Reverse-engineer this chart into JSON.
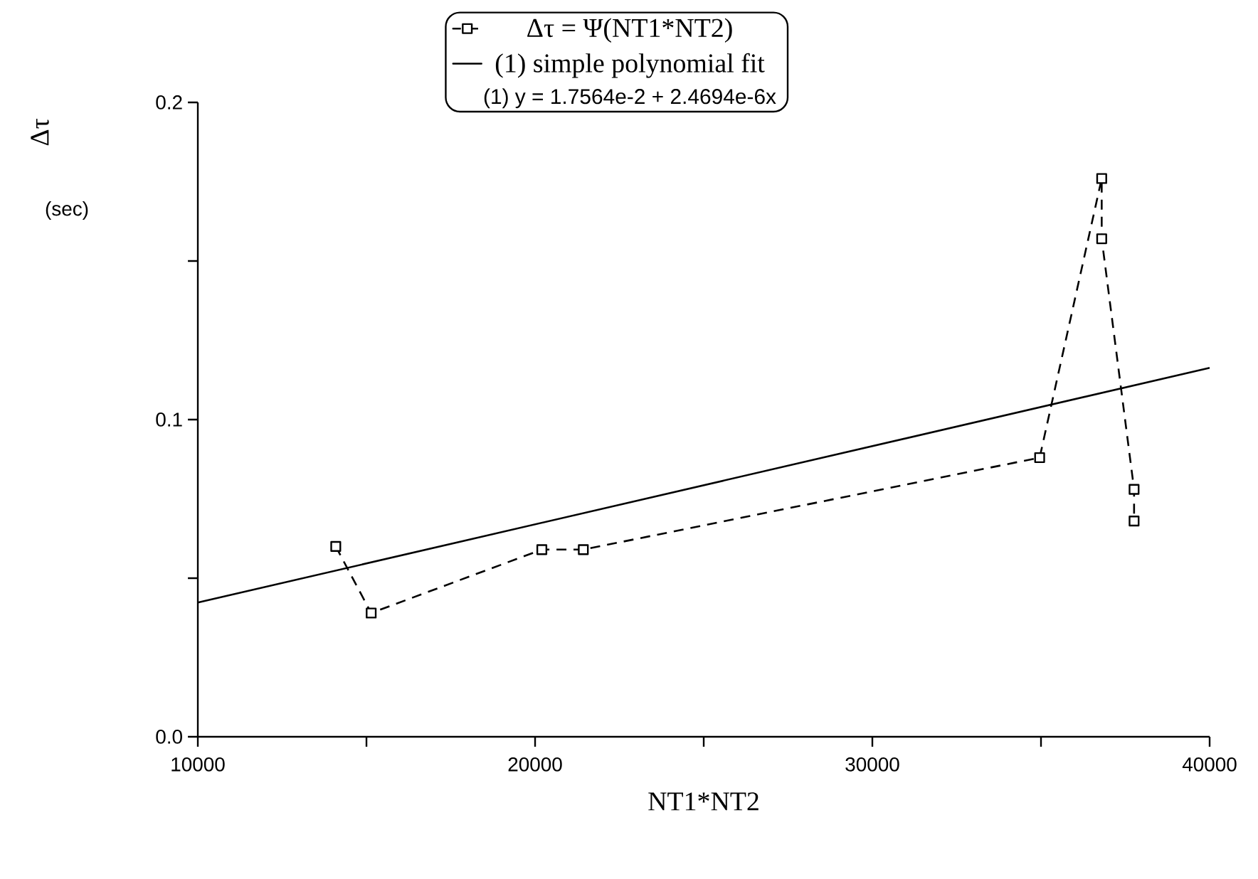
{
  "chart_data": {
    "type": "line",
    "xlabel": "NT1*NT2",
    "ylabel": "Δτ",
    "annotations": [
      "(sec)",
      "(1) y = 1.7564e-2 + 2.4694e-6x"
    ],
    "x": [
      14090,
      15140,
      20200,
      21430,
      34960,
      36800,
      36800,
      37760,
      37760
    ],
    "series": [
      {
        "name": "Δτ = Ψ(NT1*NT2)",
        "color": "#000000",
        "marker": "square",
        "line_style": "dashed",
        "values": [
          0.06,
          0.039,
          0.059,
          0.059,
          0.088,
          0.176,
          0.157,
          0.078,
          0.068
        ]
      },
      {
        "name": "(1) simple polynomial fit",
        "color": "#000000",
        "marker": "none",
        "line_style": "solid",
        "x": [
          10000,
          40000
        ],
        "values": [
          0.0423,
          0.1163
        ]
      }
    ],
    "xlim": [
      10000,
      40000
    ],
    "ylim": [
      0,
      0.2
    ],
    "xticks": [
      10000,
      {
        "value": 15000,
        "label": null
      },
      20000,
      {
        "value": 25000,
        "label": null
      },
      30000,
      {
        "value": 35000,
        "label": null
      },
      40000
    ],
    "yticks": [
      {
        "value": 0,
        "label": "0.0"
      },
      {
        "value": 0.05,
        "label": null
      },
      {
        "value": 0.1,
        "label": "0.1"
      },
      {
        "value": 0.15,
        "label": null
      },
      {
        "value": 0.2,
        "label": "0.2"
      }
    ],
    "grid": false,
    "legend": "top"
  }
}
